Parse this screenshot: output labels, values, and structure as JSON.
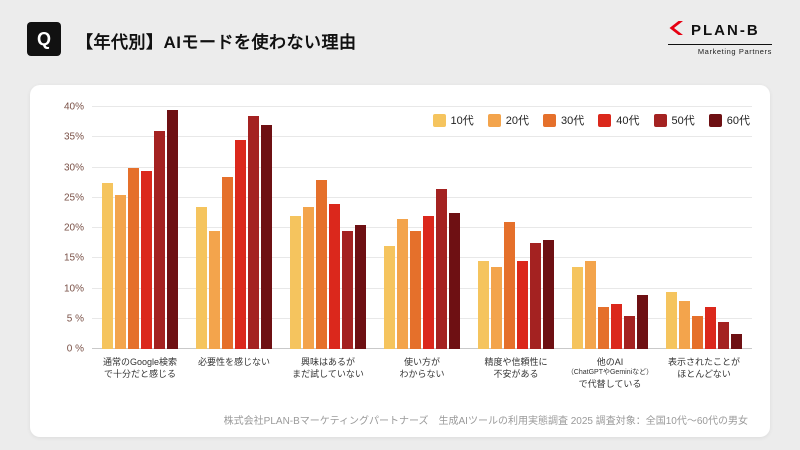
{
  "header": {
    "q_label": "Q",
    "title": "【年代別】AIモードを使わない理由",
    "logo": {
      "brand": "PLAN-B",
      "tagline": "Marketing Partners",
      "accent_color": "#E60012"
    }
  },
  "chart_data": {
    "type": "bar",
    "title": "【年代別】AIモードを使わない理由",
    "xlabel": "",
    "ylabel": "",
    "ylim": [
      0,
      40
    ],
    "grid": true,
    "legend_position": "top-right",
    "ytick_labels": [
      "0 %",
      "5 %",
      "10%",
      "15%",
      "20%",
      "25%",
      "30%",
      "35%",
      "40%"
    ],
    "categories": [
      "通常のGoogle検索で十分だと感じる",
      "必要性を感じない",
      "興味はあるがまだ試していない",
      "使い方がわからない",
      "精度や信頼性に不安がある",
      "他のAI（ChatGPTやGeminiなど）で代替している",
      "表示されたことがほとんどない"
    ],
    "category_label_lines": [
      [
        "通常のGoogle検索",
        "で十分だと感じる"
      ],
      [
        "必要性を感じない"
      ],
      [
        "興味はあるが",
        "まだ試していない"
      ],
      [
        "使い方が",
        "わからない"
      ],
      [
        "精度や信頼性に",
        "不安がある"
      ],
      [
        "他のAI",
        "（ChatGPTやGeminiなど）",
        "で代替している"
      ],
      [
        "表示されたことが",
        "ほとんどない"
      ]
    ],
    "series": [
      {
        "name": "10代",
        "color": "#F5C45E",
        "values": [
          27.5,
          23.5,
          22.0,
          17.0,
          14.5,
          13.5,
          9.5
        ]
      },
      {
        "name": "20代",
        "color": "#F3A44C",
        "values": [
          25.5,
          19.5,
          23.5,
          21.5,
          13.5,
          14.5,
          8.0
        ]
      },
      {
        "name": "30代",
        "color": "#E5702B",
        "values": [
          30.0,
          28.5,
          28.0,
          19.5,
          21.0,
          7.0,
          5.5
        ]
      },
      {
        "name": "40代",
        "color": "#DB281C",
        "values": [
          29.5,
          34.5,
          24.0,
          22.0,
          14.5,
          7.5,
          7.0
        ]
      },
      {
        "name": "50代",
        "color": "#A42221",
        "values": [
          36.0,
          38.5,
          19.5,
          26.5,
          17.5,
          5.5,
          4.5
        ]
      },
      {
        "name": "60代",
        "color": "#6E1013",
        "values": [
          39.5,
          37.0,
          20.5,
          22.5,
          18.0,
          9.0,
          2.5
        ]
      }
    ]
  },
  "footer": {
    "source": "株式会社PLAN-Bマーケティングパートナーズ　生成AIツールの利用実態調査 2025 調査対象：全国10代〜60代の男女"
  }
}
